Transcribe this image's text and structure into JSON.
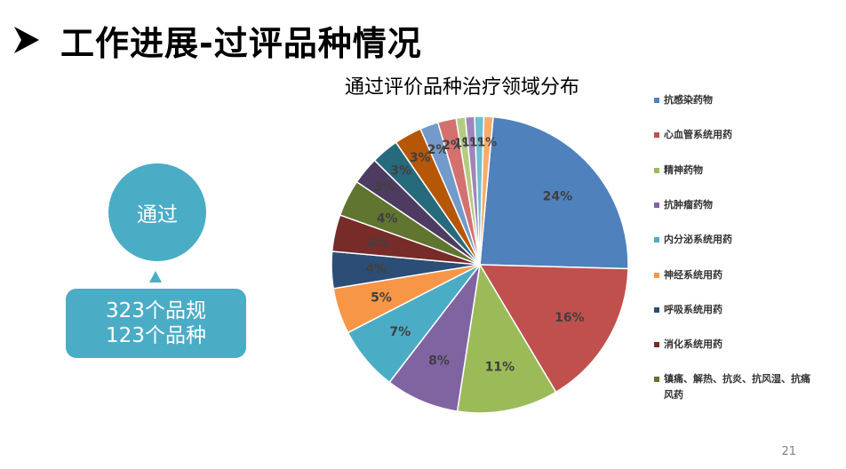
{
  "slide": {
    "title": "工作进展-过评品种情况",
    "page_number": "21"
  },
  "summary": {
    "circle_label": "通过",
    "line1": "323个品规",
    "line2": "123个品种"
  },
  "colors": {
    "accent": "#4bacc6"
  },
  "chart_data": {
    "type": "pie",
    "title": "通过评价品种治疗领域分布",
    "legend_position": "right",
    "slices": [
      {
        "label": "抗感染药物",
        "value": 24,
        "display": "24%",
        "color": "#4f81bd"
      },
      {
        "label": "心血管系统用药",
        "value": 16,
        "display": "16%",
        "color": "#c0504d"
      },
      {
        "label": "精神药物",
        "value": 11,
        "display": "11%",
        "color": "#9bbb59"
      },
      {
        "label": "抗肿瘤药物",
        "value": 8,
        "display": "8%",
        "color": "#8064a2"
      },
      {
        "label": "内分泌系统用药",
        "value": 7,
        "display": "7%",
        "color": "#4bacc6"
      },
      {
        "label": "神经系统用药",
        "value": 5,
        "display": "5%",
        "color": "#f79646"
      },
      {
        "label": "呼吸系统用药",
        "value": 4,
        "display": "4%",
        "color": "#2c4d75"
      },
      {
        "label": "消化系统用药",
        "value": 4,
        "display": "4%",
        "color": "#772c2a"
      },
      {
        "label": "镇痛、解热、抗炎、抗风湿、抗痛风药",
        "value": 4,
        "display": "4%",
        "color": "#5f7530"
      },
      {
        "label": "",
        "value": 3,
        "display": "3%",
        "color": "#4d3b62"
      },
      {
        "label": "",
        "value": 3,
        "display": "3%",
        "color": "#276a7c"
      },
      {
        "label": "",
        "value": 3,
        "display": "3%",
        "color": "#b65708"
      },
      {
        "label": "",
        "value": 2,
        "display": "2%",
        "color": "#729aca"
      },
      {
        "label": "",
        "value": 2,
        "display": "2%",
        "color": "#d3716f"
      },
      {
        "label": "",
        "value": 1,
        "display": "1%",
        "color": "#b3cc82"
      },
      {
        "label": "",
        "value": 1,
        "display": "1%",
        "color": "#9e86ba"
      },
      {
        "label": "",
        "value": 1,
        "display": "1%",
        "color": "#6fbed1"
      },
      {
        "label": "",
        "value": 1,
        "display": "1%",
        "color": "#f9ab6b"
      }
    ]
  }
}
